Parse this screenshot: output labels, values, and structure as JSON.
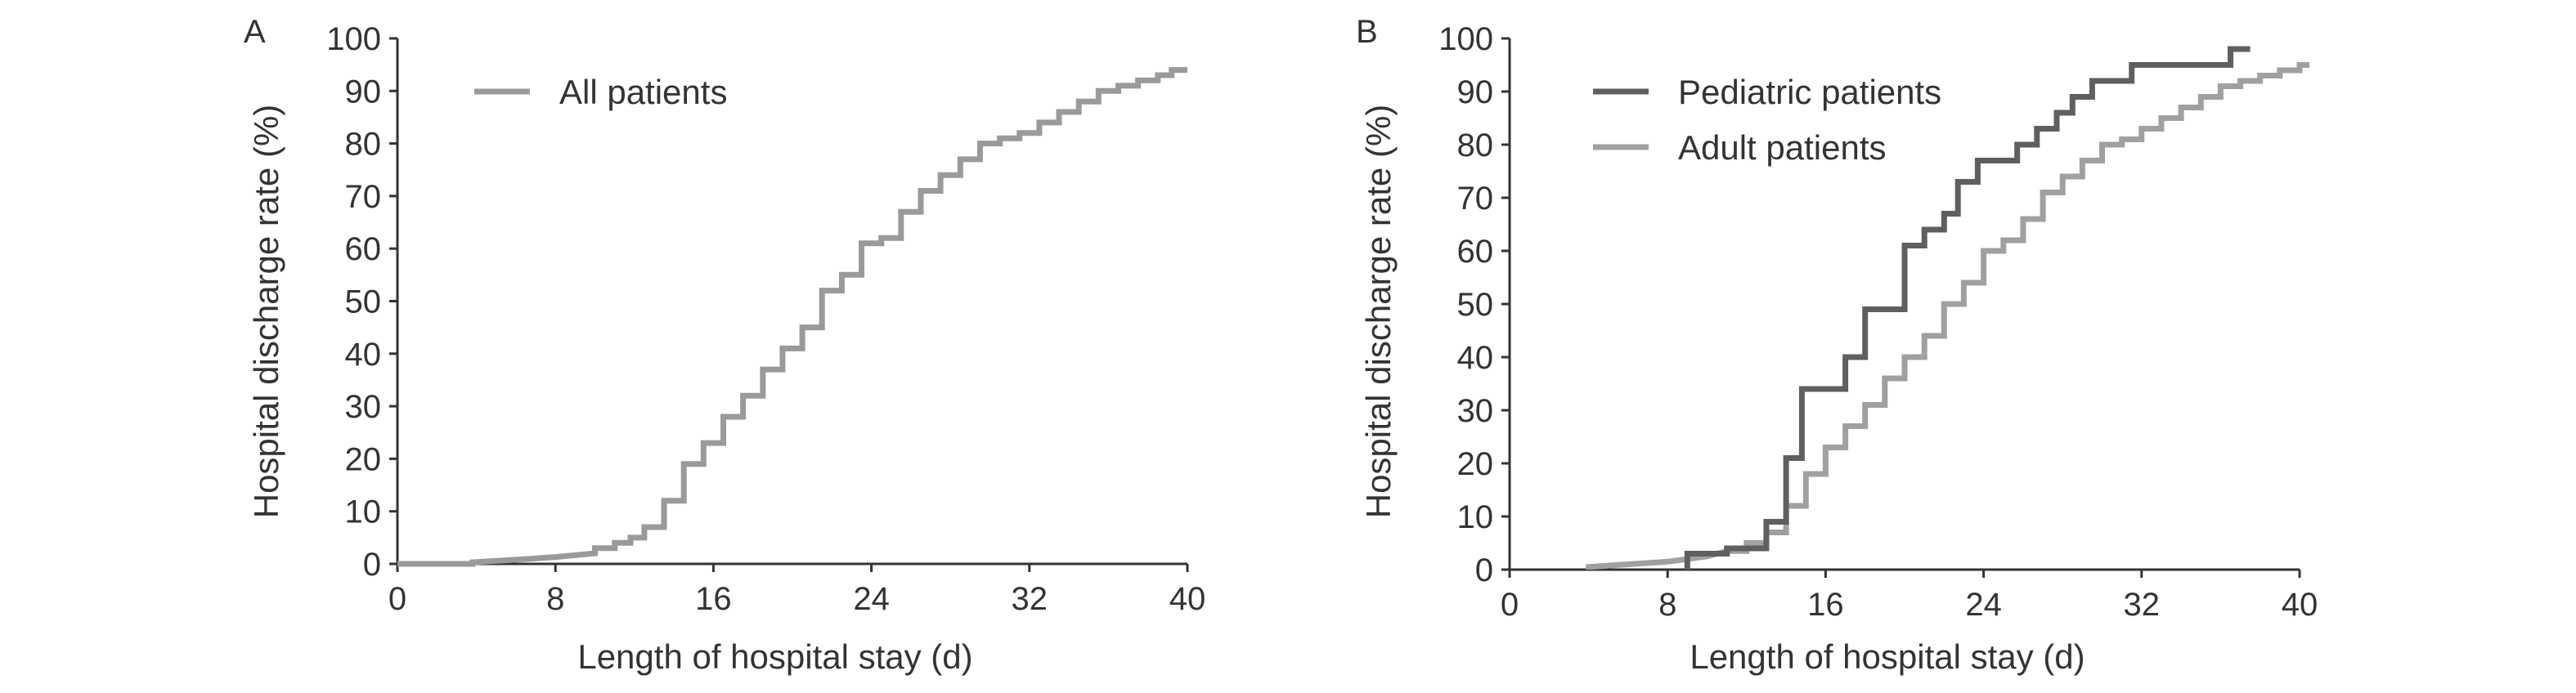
{
  "chart_data": [
    {
      "panel": "A",
      "type": "line",
      "step": true,
      "xlabel": "Length of hospital stay (d)",
      "ylabel": "Hospital discharge rate (%)",
      "xlim": [
        0,
        40
      ],
      "ylim": [
        0,
        100
      ],
      "xticks": [
        0,
        8,
        16,
        24,
        32,
        40
      ],
      "yticks": [
        0,
        10,
        20,
        30,
        40,
        50,
        60,
        70,
        80,
        90,
        100
      ],
      "grid": false,
      "legend_position": "top-left",
      "series": [
        {
          "name": "All patients",
          "color": "#9a9a9a",
          "points": [
            [
              0,
              0
            ],
            [
              3.8,
              0
            ],
            [
              3.8,
              0.3
            ],
            [
              6,
              0.8
            ],
            [
              8,
              1.3
            ],
            [
              10,
              2
            ],
            [
              10,
              3
            ],
            [
              11,
              3
            ],
            [
              11,
              4
            ],
            [
              11.8,
              4
            ],
            [
              11.8,
              5
            ],
            [
              12.5,
              5
            ],
            [
              12.5,
              7
            ],
            [
              13.5,
              7
            ],
            [
              13.5,
              12
            ],
            [
              14.5,
              12
            ],
            [
              14.5,
              19
            ],
            [
              15.5,
              19
            ],
            [
              15.5,
              23
            ],
            [
              16.5,
              23
            ],
            [
              16.5,
              28
            ],
            [
              17.5,
              28
            ],
            [
              17.5,
              32
            ],
            [
              18.5,
              32
            ],
            [
              18.5,
              37
            ],
            [
              19.5,
              37
            ],
            [
              19.5,
              41
            ],
            [
              20.5,
              41
            ],
            [
              20.5,
              45
            ],
            [
              21.5,
              45
            ],
            [
              21.5,
              52
            ],
            [
              22.5,
              52
            ],
            [
              22.5,
              55
            ],
            [
              23.5,
              55
            ],
            [
              23.5,
              61
            ],
            [
              24.5,
              61
            ],
            [
              24.5,
              62
            ],
            [
              25.5,
              62
            ],
            [
              25.5,
              67
            ],
            [
              26.5,
              67
            ],
            [
              26.5,
              71
            ],
            [
              27.5,
              71
            ],
            [
              27.5,
              74
            ],
            [
              28.5,
              74
            ],
            [
              28.5,
              77
            ],
            [
              29.5,
              77
            ],
            [
              29.5,
              80
            ],
            [
              30.5,
              80
            ],
            [
              30.5,
              81
            ],
            [
              31.5,
              81
            ],
            [
              31.5,
              82
            ],
            [
              32.5,
              82
            ],
            [
              32.5,
              84
            ],
            [
              33.5,
              84
            ],
            [
              33.5,
              86
            ],
            [
              34.5,
              86
            ],
            [
              34.5,
              88
            ],
            [
              35.5,
              88
            ],
            [
              35.5,
              90
            ],
            [
              36.5,
              90
            ],
            [
              36.5,
              91
            ],
            [
              37.5,
              91
            ],
            [
              37.5,
              92
            ],
            [
              38.5,
              92
            ],
            [
              38.5,
              93
            ],
            [
              39.2,
              93
            ],
            [
              39.2,
              94
            ],
            [
              40,
              94
            ]
          ]
        }
      ]
    },
    {
      "panel": "B",
      "type": "line",
      "step": true,
      "xlabel": "Length of hospital stay (d)",
      "ylabel": "Hospital discharge rate (%)",
      "xlim": [
        0,
        40
      ],
      "ylim": [
        0,
        100
      ],
      "xticks": [
        0,
        8,
        16,
        24,
        32,
        40
      ],
      "yticks": [
        0,
        10,
        20,
        30,
        40,
        50,
        60,
        70,
        80,
        90,
        100
      ],
      "grid": false,
      "legend_position": "top-left",
      "series": [
        {
          "name": "Pediatric patients",
          "color": "#5f5f5f",
          "points": [
            [
              9,
              0
            ],
            [
              9,
              3
            ],
            [
              11,
              3
            ],
            [
              11,
              4
            ],
            [
              12,
              4
            ],
            [
              13,
              4
            ],
            [
              13,
              9
            ],
            [
              14,
              9
            ],
            [
              14,
              21
            ],
            [
              14.8,
              21
            ],
            [
              14.8,
              34
            ],
            [
              17,
              34
            ],
            [
              17,
              40
            ],
            [
              18,
              40
            ],
            [
              18,
              49
            ],
            [
              20,
              49
            ],
            [
              20,
              61
            ],
            [
              21,
              61
            ],
            [
              21,
              64
            ],
            [
              22,
              64
            ],
            [
              22,
              67
            ],
            [
              22.7,
              67
            ],
            [
              22.7,
              73
            ],
            [
              23.7,
              73
            ],
            [
              23.7,
              77
            ],
            [
              25.7,
              77
            ],
            [
              25.7,
              80
            ],
            [
              26.7,
              80
            ],
            [
              26.7,
              83
            ],
            [
              27.7,
              83
            ],
            [
              27.7,
              86
            ],
            [
              28.5,
              86
            ],
            [
              28.5,
              89
            ],
            [
              29.5,
              89
            ],
            [
              29.5,
              92
            ],
            [
              31.5,
              92
            ],
            [
              31.5,
              95
            ],
            [
              36.5,
              95
            ],
            [
              36.5,
              98
            ],
            [
              37.5,
              98
            ]
          ]
        },
        {
          "name": "Adult patients",
          "color": "#a0a0a0",
          "points": [
            [
              4,
              0
            ],
            [
              4,
              0.5
            ],
            [
              6,
              1
            ],
            [
              8,
              1.5
            ],
            [
              10,
              2.5
            ],
            [
              11,
              3.5
            ],
            [
              12,
              3.5
            ],
            [
              12,
              5
            ],
            [
              13,
              5
            ],
            [
              13,
              7
            ],
            [
              14,
              7
            ],
            [
              14,
              12
            ],
            [
              15,
              12
            ],
            [
              15,
              18
            ],
            [
              16,
              18
            ],
            [
              16,
              23
            ],
            [
              17,
              23
            ],
            [
              17,
              27
            ],
            [
              18,
              27
            ],
            [
              18,
              31
            ],
            [
              19,
              31
            ],
            [
              19,
              36
            ],
            [
              20,
              36
            ],
            [
              20,
              40
            ],
            [
              21,
              40
            ],
            [
              21,
              44
            ],
            [
              22,
              44
            ],
            [
              22,
              50
            ],
            [
              23,
              50
            ],
            [
              23,
              54
            ],
            [
              24,
              54
            ],
            [
              24,
              60
            ],
            [
              25,
              60
            ],
            [
              25,
              62
            ],
            [
              26,
              62
            ],
            [
              26,
              66
            ],
            [
              27,
              66
            ],
            [
              27,
              71
            ],
            [
              28,
              71
            ],
            [
              28,
              74
            ],
            [
              29,
              74
            ],
            [
              29,
              77
            ],
            [
              30,
              77
            ],
            [
              30,
              80
            ],
            [
              31,
              80
            ],
            [
              31,
              81
            ],
            [
              32,
              81
            ],
            [
              32,
              83
            ],
            [
              33,
              83
            ],
            [
              33,
              85
            ],
            [
              34,
              85
            ],
            [
              34,
              87
            ],
            [
              35,
              87
            ],
            [
              35,
              89
            ],
            [
              36,
              89
            ],
            [
              36,
              91
            ],
            [
              37,
              91
            ],
            [
              37,
              92
            ],
            [
              38,
              92
            ],
            [
              38,
              93
            ],
            [
              39,
              93
            ],
            [
              39,
              94
            ],
            [
              40,
              94
            ],
            [
              40,
              95
            ],
            [
              40.5,
              95
            ]
          ]
        }
      ]
    }
  ]
}
